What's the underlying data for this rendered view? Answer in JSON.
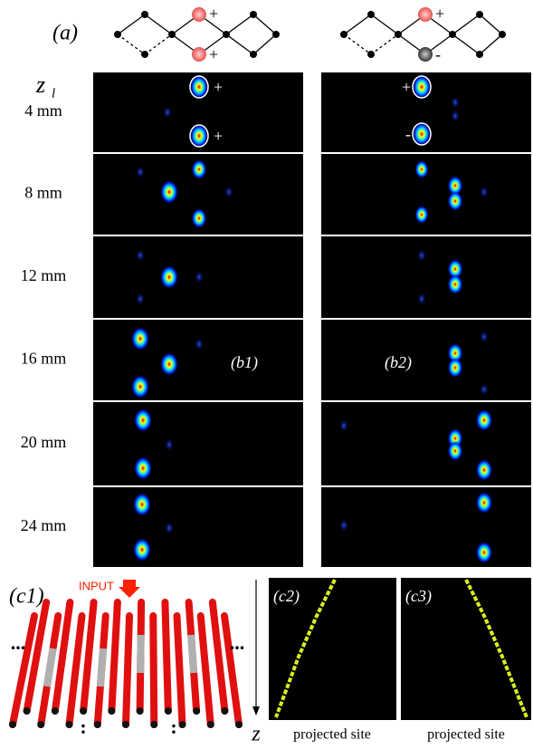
{
  "panel_a": {
    "label": "(a)",
    "left_signs": [
      "+",
      "+"
    ],
    "right_signs": [
      "+",
      "-"
    ]
  },
  "panel_b": {
    "axis_symbol": "z",
    "axis_subscript": "l",
    "rows": [
      "4 mm",
      "8 mm",
      "12 mm",
      "16 mm",
      "20 mm",
      "24 mm"
    ],
    "left_label": "(b1)",
    "right_label": "(b2)",
    "left_signs": [
      "+",
      "+"
    ],
    "right_signs": [
      "+",
      "-"
    ]
  },
  "panel_c": {
    "label": "(c1)",
    "input_label": "INPUT",
    "ellipsis": "...",
    "vertical_ellipsis": ":",
    "left_label": "(c2)",
    "right_label": "(c3)",
    "axis_label": "z",
    "x_label": "projected site"
  }
}
